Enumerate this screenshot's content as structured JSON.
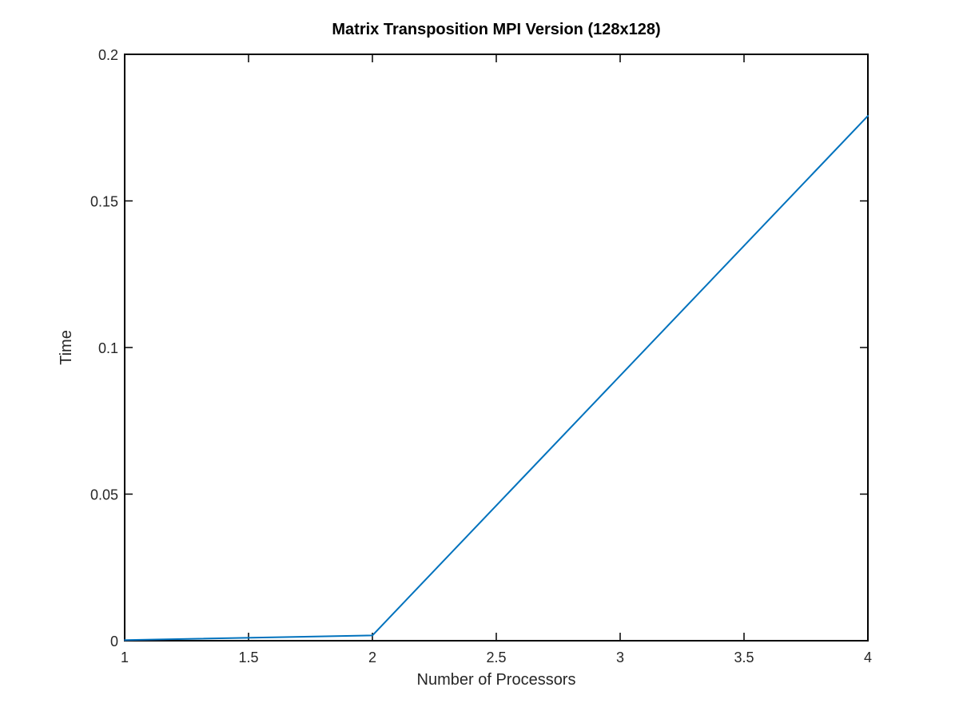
{
  "chart_data": {
    "type": "line",
    "title": "Matrix Transposition MPI Version (128x128)",
    "xlabel": "Number of Processors",
    "ylabel": "Time",
    "xlim": [
      1,
      4
    ],
    "ylim": [
      0,
      0.2
    ],
    "x_ticks": [
      "1",
      "1.5",
      "2",
      "2.5",
      "3",
      "3.5",
      "4"
    ],
    "y_ticks": [
      "0",
      "0.05",
      "0.1",
      "0.15",
      "0.2"
    ],
    "grid": false,
    "series": [
      {
        "color": "#0072bd",
        "x": [
          1,
          2,
          4
        ],
        "y": [
          0.0002,
          0.0018,
          0.179
        ]
      }
    ]
  }
}
